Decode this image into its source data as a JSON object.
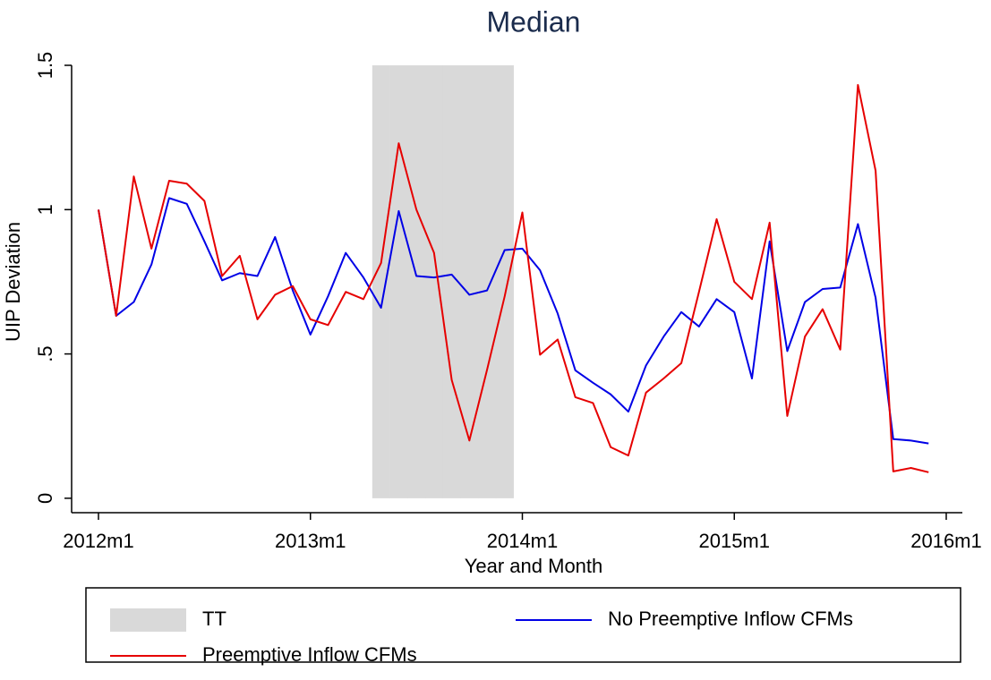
{
  "chart_data": {
    "type": "line",
    "title": "Median",
    "x_label": "Year and Month",
    "y_label": "UIP Deviation",
    "x": [
      "2012m1",
      "2012m2",
      "2012m3",
      "2012m4",
      "2012m5",
      "2012m6",
      "2012m7",
      "2012m8",
      "2012m9",
      "2012m10",
      "2012m11",
      "2012m12",
      "2013m1",
      "2013m2",
      "2013m3",
      "2013m4",
      "2013m5",
      "2013m6",
      "2013m7",
      "2013m8",
      "2013m9",
      "2013m10",
      "2013m11",
      "2013m12",
      "2014m1",
      "2014m2",
      "2014m3",
      "2014m4",
      "2014m5",
      "2014m6",
      "2014m7",
      "2014m8",
      "2014m9",
      "2014m10",
      "2014m11",
      "2014m12",
      "2015m1",
      "2015m2",
      "2015m3",
      "2015m4",
      "2015m5",
      "2015m6",
      "2015m7",
      "2015m8",
      "2015m9",
      "2015m10",
      "2015m11",
      "2015m12"
    ],
    "series": [
      {
        "name": "TT",
        "type": "bar",
        "color": "#d9d9d9",
        "x": [
          "2013m5",
          "2013m6",
          "2013m7",
          "2013m8",
          "2013m9",
          "2013m10",
          "2013m11",
          "2013m12"
        ],
        "values": [
          1.5,
          1.5,
          1.5,
          1.5,
          1.5,
          1.5,
          1.5,
          1.5
        ]
      },
      {
        "name": "No Preemptive Inflow CFMs",
        "type": "line",
        "color": "#0000e6",
        "values": [
          1.0,
          0.632,
          0.68,
          0.81,
          1.04,
          1.02,
          0.89,
          0.755,
          0.78,
          0.77,
          0.905,
          0.72,
          0.567,
          0.7,
          0.85,
          0.765,
          0.66,
          0.995,
          0.77,
          0.765,
          0.775,
          0.705,
          0.72,
          0.86,
          0.865,
          0.79,
          0.64,
          0.443,
          0.4,
          0.36,
          0.3,
          0.46,
          0.56,
          0.645,
          0.595,
          0.69,
          0.645,
          0.415,
          0.89,
          0.51,
          0.68,
          0.725,
          0.73,
          0.95,
          0.695,
          0.205,
          0.2,
          0.19
        ]
      },
      {
        "name": "Preemptive Inflow CFMs",
        "type": "line",
        "color": "#e60000",
        "values": [
          1.0,
          0.632,
          1.115,
          0.865,
          1.1,
          1.09,
          1.03,
          0.77,
          0.84,
          0.62,
          0.705,
          0.735,
          0.62,
          0.6,
          0.715,
          0.69,
          0.815,
          1.23,
          1.0,
          0.85,
          0.41,
          0.2,
          0.445,
          0.7,
          0.99,
          0.497,
          0.55,
          0.35,
          0.33,
          0.177,
          0.148,
          0.366,
          0.415,
          0.468,
          0.715,
          0.967,
          0.75,
          0.69,
          0.955,
          0.285,
          0.56,
          0.655,
          0.515,
          1.432,
          1.135,
          0.093,
          0.105,
          0.09
        ]
      }
    ],
    "xlim": [
      "2012m1",
      "2016m1"
    ],
    "xticks": [
      "2012m1",
      "2013m1",
      "2014m1",
      "2015m1",
      "2016m1"
    ],
    "ylim": [
      -0.05,
      1.5
    ],
    "yticks": [
      0,
      {
        "value": 0.5,
        "label": ".5"
      },
      1,
      1.5
    ],
    "legend": "bottom"
  }
}
